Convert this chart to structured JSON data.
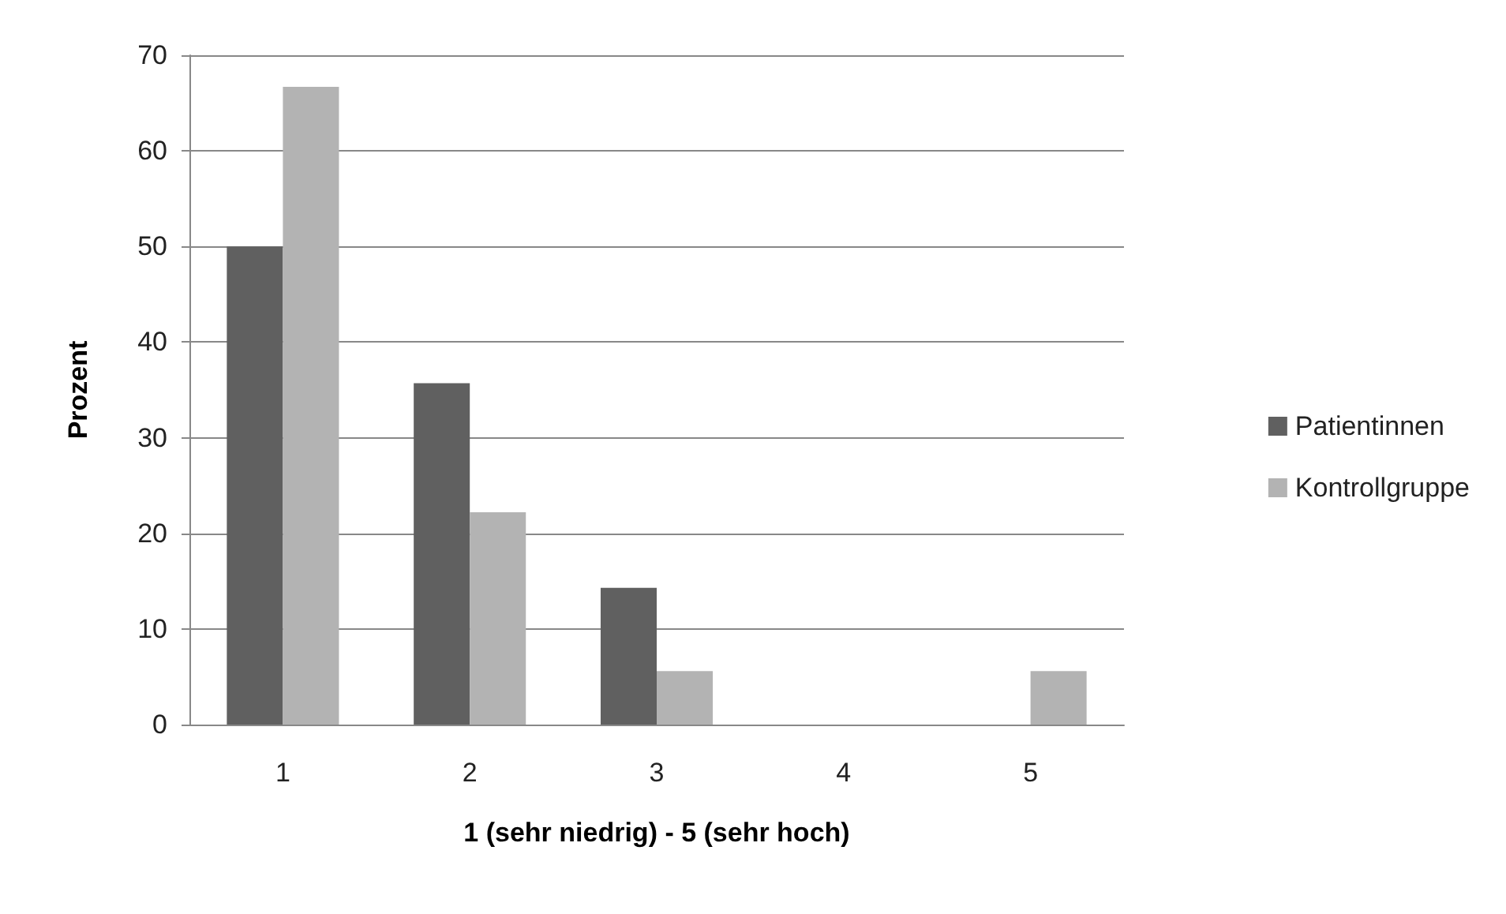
{
  "chart_data": {
    "type": "bar",
    "xlabel": "1 (sehr niedrig) - 5 (sehr hoch)",
    "ylabel": "Prozent",
    "categories": [
      "1",
      "2",
      "3",
      "4",
      "5"
    ],
    "series": [
      {
        "name": "Patientinnen",
        "color": "#606060",
        "values": [
          50,
          35.7,
          14.3,
          0,
          0
        ]
      },
      {
        "name": "Kontrollgruppe",
        "color": "#b3b3b3",
        "values": [
          66.7,
          22.2,
          5.6,
          0,
          5.6
        ]
      }
    ],
    "ylim": [
      0,
      70
    ],
    "yticks": [
      0,
      10,
      20,
      30,
      40,
      50,
      60,
      70
    ],
    "grid": "y",
    "legend": "right"
  }
}
